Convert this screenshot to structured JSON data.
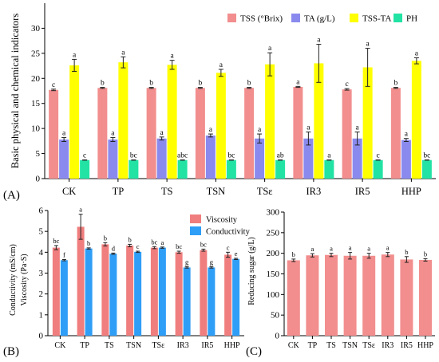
{
  "chart_data": [
    {
      "id": "A",
      "type": "bar",
      "panel_label": "(A)",
      "ylabel": "Basic physical and chemical indicators",
      "xlabel": "",
      "ylim": [
        0,
        35
      ],
      "yticks": [
        0,
        5,
        10,
        15,
        20,
        25,
        30
      ],
      "grid": false,
      "legend": "top",
      "categories": [
        "CK",
        "TP",
        "TS",
        "TSN",
        "TSε",
        "IR3",
        "IR5",
        "HHP"
      ],
      "series": [
        {
          "name": "TSS (°Brix)",
          "color": "#f28e8e",
          "values": [
            17.7,
            18.1,
            18.1,
            18.1,
            18.1,
            18.3,
            17.8,
            18.1
          ],
          "errors": [
            0.15,
            0.1,
            0.1,
            0.1,
            0.1,
            0.1,
            0.15,
            0.1
          ],
          "letters": [
            "c",
            "b",
            "b",
            "b",
            "b",
            "a",
            "c",
            "b"
          ]
        },
        {
          "name": "TA (g/L)",
          "color": "#8a8aee",
          "values": [
            7.8,
            7.8,
            8.0,
            8.6,
            8.0,
            8.0,
            8.0,
            7.7
          ],
          "errors": [
            0.4,
            0.4,
            0.3,
            0.3,
            0.9,
            1.3,
            1.3,
            0.3
          ],
          "letters": [
            "a",
            "a",
            "a",
            "a",
            "a",
            "a",
            "a",
            "a"
          ]
        },
        {
          "name": "TSS-TA",
          "color": "#ffff00",
          "values": [
            22.6,
            23.2,
            22.7,
            21.1,
            22.8,
            23.0,
            22.2,
            23.5
          ],
          "errors": [
            1.2,
            1.1,
            0.9,
            0.7,
            2.3,
            3.8,
            3.8,
            0.6
          ],
          "letters": [
            "a",
            "a",
            "a",
            "a",
            "a",
            "a",
            "a",
            "a"
          ]
        },
        {
          "name": "PH",
          "color": "#22e3a4",
          "values": [
            3.7,
            3.7,
            3.7,
            3.7,
            3.7,
            3.7,
            3.7,
            3.7
          ],
          "errors": [
            0.03,
            0.03,
            0.03,
            0.03,
            0.03,
            0.03,
            0.03,
            0.03
          ],
          "letters": [
            "c",
            "bc",
            "abc",
            "bc",
            "ab",
            "a",
            "c",
            "bc"
          ]
        }
      ]
    },
    {
      "id": "B",
      "type": "bar",
      "panel_label": "(B)",
      "ylabel": "Viscosity (Pa·S)",
      "ylabel2": "Conductivity (mS/cm)",
      "xlabel": "",
      "ylim": [
        0,
        6
      ],
      "yticks": [
        0,
        1,
        2,
        3,
        4,
        5,
        6
      ],
      "grid": false,
      "legend": "top-right",
      "categories": [
        "CK",
        "TP",
        "TS",
        "TSN",
        "TSε",
        "IR3",
        "IR5",
        "HHP"
      ],
      "series": [
        {
          "name": "Viscosity",
          "color": "#f07e7e",
          "values": [
            4.22,
            5.22,
            4.38,
            4.32,
            4.22,
            4.0,
            4.1,
            3.88
          ],
          "errors": [
            0.1,
            0.6,
            0.08,
            0.06,
            0.05,
            0.05,
            0.05,
            0.12
          ],
          "letters": [
            "bc",
            "a",
            "b",
            "b",
            "bc",
            "bc",
            "bc",
            "c"
          ]
        },
        {
          "name": "Conductivity",
          "color": "#2f9ef7",
          "values": [
            3.62,
            4.18,
            3.93,
            4.02,
            4.22,
            3.27,
            3.27,
            3.68
          ],
          "errors": [
            0.03,
            0.03,
            0.03,
            0.03,
            0.03,
            0.03,
            0.03,
            0.03
          ],
          "letters": [
            "f",
            "b",
            "d",
            "c",
            "a",
            "g",
            "g",
            "e"
          ]
        }
      ]
    },
    {
      "id": "C",
      "type": "bar",
      "panel_label": "(C)",
      "ylabel": "Reducing sugar (g/L)",
      "xlabel": "",
      "ylim": [
        0,
        300
      ],
      "yticks": [
        0,
        50,
        100,
        150,
        200,
        250,
        300
      ],
      "grid": false,
      "categories": [
        "CK",
        "TP",
        "TS",
        "TSN",
        "TSε",
        "IR3",
        "IR5",
        "HHP"
      ],
      "series": [
        {
          "name": "Reducing sugar",
          "color": "#f28e8e",
          "values": [
            183,
            195,
            196,
            194,
            194,
            197,
            185,
            184
          ],
          "errors": [
            3,
            4,
            4,
            8,
            6,
            5,
            7,
            3
          ],
          "letters": [
            "b",
            "a",
            "a",
            "a",
            "a",
            "a",
            "b",
            "b"
          ]
        }
      ]
    }
  ]
}
